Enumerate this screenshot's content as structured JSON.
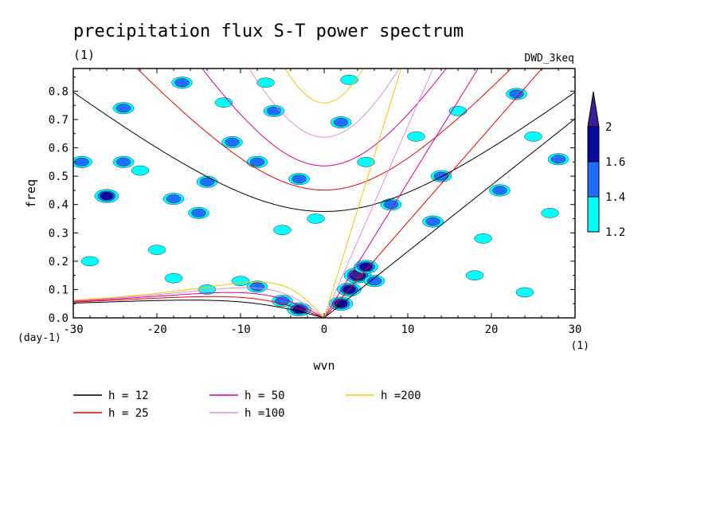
{
  "chart_data": {
    "type": "heatmap",
    "title": "precipitation flux S-T power spectrum",
    "subtitle_left": "(1)",
    "subtitle_right": "DWD_3keq",
    "xlabel": "wvn",
    "ylabel": "freq",
    "x_unit": "(1)",
    "y_unit": "(day-1)",
    "xlim": [
      -30,
      30
    ],
    "ylim": [
      0,
      0.88
    ],
    "x_ticks": [
      -30,
      -20,
      -10,
      0,
      10,
      20,
      30
    ],
    "x_tick_labels": [
      "-30",
      "-20",
      "-10",
      "0",
      "10",
      "20",
      "30"
    ],
    "y_ticks": [
      0,
      0.1,
      0.2,
      0.3,
      0.4,
      0.5,
      0.6,
      0.7,
      0.8
    ],
    "y_tick_labels": [
      "0.0",
      "0.1",
      "0.2",
      "0.3",
      "0.4",
      "0.5",
      "0.6",
      "0.7",
      "0.8"
    ],
    "colorbar": {
      "levels": [
        1.2,
        1.4,
        1.6,
        2
      ],
      "labels": [
        "1.2",
        "1.4",
        "1.6",
        "2"
      ],
      "colors": [
        "#00ffff",
        "#1e6eff",
        "#0a0aa0",
        "#3c1e9b"
      ]
    },
    "contour_blobs": [
      {
        "x": -3,
        "y": 0.03,
        "level": 3
      },
      {
        "x": -5,
        "y": 0.06,
        "level": 2
      },
      {
        "x": -8,
        "y": 0.11,
        "level": 2
      },
      {
        "x": -10,
        "y": 0.13,
        "level": 1
      },
      {
        "x": -14,
        "y": 0.1,
        "level": 1
      },
      {
        "x": -18,
        "y": 0.14,
        "level": 1
      },
      {
        "x": 2,
        "y": 0.05,
        "level": 3
      },
      {
        "x": 3,
        "y": 0.1,
        "level": 3
      },
      {
        "x": 4,
        "y": 0.15,
        "level": 4
      },
      {
        "x": 5,
        "y": 0.18,
        "level": 3
      },
      {
        "x": 6,
        "y": 0.13,
        "level": 2
      },
      {
        "x": 13,
        "y": 0.34,
        "level": 2
      },
      {
        "x": -28,
        "y": 0.2,
        "level": 1
      },
      {
        "x": -29,
        "y": 0.55,
        "level": 2
      },
      {
        "x": -26,
        "y": 0.43,
        "level": 3
      },
      {
        "x": -24,
        "y": 0.55,
        "level": 2
      },
      {
        "x": -22,
        "y": 0.52,
        "level": 1
      },
      {
        "x": -18,
        "y": 0.42,
        "level": 2
      },
      {
        "x": -17,
        "y": 0.83,
        "level": 2
      },
      {
        "x": -14,
        "y": 0.48,
        "level": 2
      },
      {
        "x": -12,
        "y": 0.76,
        "level": 1
      },
      {
        "x": -11,
        "y": 0.62,
        "level": 2
      },
      {
        "x": -8,
        "y": 0.55,
        "level": 2
      },
      {
        "x": -6,
        "y": 0.73,
        "level": 2
      },
      {
        "x": -5,
        "y": 0.31,
        "level": 1
      },
      {
        "x": -3,
        "y": 0.49,
        "level": 2
      },
      {
        "x": -1,
        "y": 0.35,
        "level": 1
      },
      {
        "x": 2,
        "y": 0.69,
        "level": 2
      },
      {
        "x": 5,
        "y": 0.55,
        "level": 1
      },
      {
        "x": 8,
        "y": 0.4,
        "level": 2
      },
      {
        "x": 11,
        "y": 0.64,
        "level": 1
      },
      {
        "x": 14,
        "y": 0.5,
        "level": 2
      },
      {
        "x": 16,
        "y": 0.73,
        "level": 1
      },
      {
        "x": 19,
        "y": 0.28,
        "level": 1
      },
      {
        "x": 21,
        "y": 0.45,
        "level": 2
      },
      {
        "x": 23,
        "y": 0.79,
        "level": 2
      },
      {
        "x": 25,
        "y": 0.64,
        "level": 1
      },
      {
        "x": 27,
        "y": 0.37,
        "level": 1
      },
      {
        "x": -24,
        "y": 0.74,
        "level": 2
      },
      {
        "x": -20,
        "y": 0.24,
        "level": 1
      },
      {
        "x": -15,
        "y": 0.37,
        "level": 2
      },
      {
        "x": -7,
        "y": 0.83,
        "level": 1
      },
      {
        "x": 3,
        "y": 0.84,
        "level": 1
      },
      {
        "x": 18,
        "y": 0.15,
        "level": 1
      },
      {
        "x": 24,
        "y": 0.09,
        "level": 1
      },
      {
        "x": 28,
        "y": 0.56,
        "level": 2
      }
    ],
    "legend": [
      {
        "label": "h = 12",
        "h": 12,
        "color": "#000000"
      },
      {
        "label": "h = 25",
        "h": 25,
        "color": "#e60000"
      },
      {
        "label": "h = 50",
        "h": 50,
        "color": "#d2009b"
      },
      {
        "label": "h =100",
        "h": 100,
        "color": "#dc8cdc"
      },
      {
        "label": "h =200",
        "h": 200,
        "color": "#f0c800"
      }
    ]
  }
}
